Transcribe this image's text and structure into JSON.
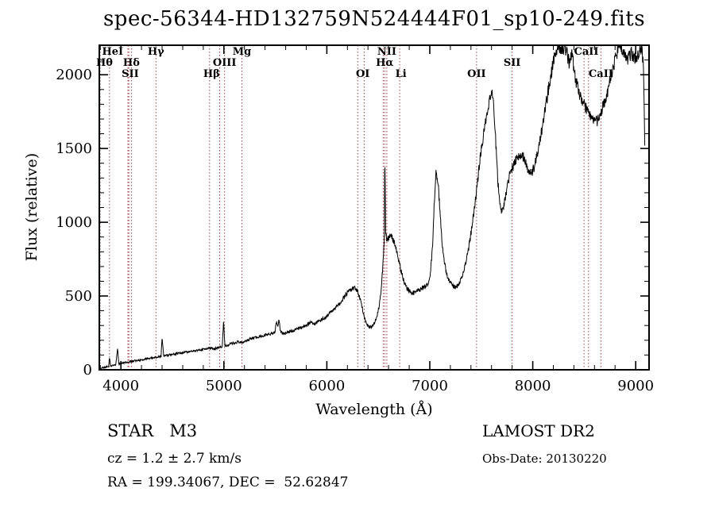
{
  "annotations": {
    "object": "STAR   M3",
    "cz": "cz = 1.2 ± 2.7 km/s",
    "ra_dec": "RA = 199.34067, DEC =  52.62847",
    "survey": "LAMOST DR2",
    "obs_date": "Obs-Date: 20130220"
  },
  "chart_data": {
    "type": "line",
    "title": "spec-56344-HD132759N524444F01_sp10-249.fits",
    "xlabel": "Wavelength (Å)",
    "ylabel": "Flux (relative)",
    "xlim": [
      3790,
      9130
    ],
    "ylim": [
      0,
      2200
    ],
    "x_ticks": [
      4000,
      5000,
      6000,
      7000,
      8000,
      9000
    ],
    "y_ticks": [
      0,
      500,
      1000,
      1500,
      2000
    ],
    "x_minor_step": 200,
    "y_minor_step": 100,
    "grid": false,
    "legend": "none",
    "line_color": "#000000",
    "marker_color": "#994444",
    "spectral_lines": [
      {
        "label": "HeI",
        "row": 1,
        "at": 3920,
        "lines": [
          3889
        ]
      },
      {
        "label": "Hθ",
        "row": 2,
        "at": 3840,
        "lines": [
          3798
        ]
      },
      {
        "label": "Hδ",
        "row": 2,
        "at": 4102,
        "lines": [
          4102
        ]
      },
      {
        "label": "SII",
        "row": 3,
        "at": 4090,
        "lines": [
          4068,
          4076
        ]
      },
      {
        "label": "Hγ",
        "row": 1,
        "at": 4340,
        "lines": [
          4340
        ]
      },
      {
        "label": "OIII",
        "row": 2,
        "at": 5007,
        "lines": [
          4959,
          5007
        ]
      },
      {
        "label": "Hβ",
        "row": 3,
        "at": 4880,
        "lines": [
          4861
        ]
      },
      {
        "label": "Mg",
        "row": 1,
        "at": 5175,
        "lines": [
          5175
        ]
      },
      {
        "label": "OI",
        "row": 3,
        "at": 6350,
        "lines": [
          6300,
          6363
        ]
      },
      {
        "label": "NII",
        "row": 1,
        "at": 6583,
        "lines": [
          6548,
          6583
        ]
      },
      {
        "label": "Hα",
        "row": 2,
        "at": 6563,
        "lines": [
          6563
        ]
      },
      {
        "label": "Li",
        "row": 3,
        "at": 6720,
        "lines": [
          6708
        ]
      },
      {
        "label": "OII",
        "row": 3,
        "at": 7455,
        "lines": [
          7455
        ]
      },
      {
        "label": "SII",
        "row": 2,
        "at": 7800,
        "lines": [
          7800
        ]
      },
      {
        "label": "CaII",
        "row": 1,
        "at": 8520,
        "lines": [
          8498,
          8542
        ]
      },
      {
        "label": "CaII",
        "row": 3,
        "at": 8662,
        "lines": [
          8662
        ]
      }
    ],
    "spectrum": [
      [
        3790,
        8
      ],
      [
        3815,
        12
      ],
      [
        3840,
        16
      ],
      [
        3862,
        20
      ],
      [
        3880,
        24
      ],
      [
        3889,
        85
      ],
      [
        3900,
        26
      ],
      [
        3925,
        30
      ],
      [
        3950,
        34
      ],
      [
        3968,
        150
      ],
      [
        3980,
        38
      ],
      [
        4000,
        42
      ],
      [
        4040,
        50
      ],
      [
        4080,
        55
      ],
      [
        4120,
        60
      ],
      [
        4160,
        64
      ],
      [
        4200,
        68
      ],
      [
        4240,
        73
      ],
      [
        4280,
        78
      ],
      [
        4320,
        83
      ],
      [
        4360,
        88
      ],
      [
        4390,
        92
      ],
      [
        4400,
        215
      ],
      [
        4415,
        94
      ],
      [
        4450,
        98
      ],
      [
        4500,
        104
      ],
      [
        4550,
        110
      ],
      [
        4600,
        116
      ],
      [
        4650,
        122
      ],
      [
        4700,
        127
      ],
      [
        4750,
        132
      ],
      [
        4800,
        138
      ],
      [
        4861,
        148
      ],
      [
        4905,
        142
      ],
      [
        4950,
        150
      ],
      [
        4985,
        158
      ],
      [
        4997,
        330
      ],
      [
        5010,
        162
      ],
      [
        5050,
        172
      ],
      [
        5100,
        183
      ],
      [
        5150,
        190
      ],
      [
        5185,
        185
      ],
      [
        5220,
        200
      ],
      [
        5260,
        210
      ],
      [
        5300,
        216
      ],
      [
        5350,
        226
      ],
      [
        5400,
        234
      ],
      [
        5450,
        243
      ],
      [
        5480,
        250
      ],
      [
        5497,
        252
      ],
      [
        5510,
        330
      ],
      [
        5522,
        285
      ],
      [
        5535,
        340
      ],
      [
        5550,
        262
      ],
      [
        5575,
        246
      ],
      [
        5620,
        254
      ],
      [
        5665,
        264
      ],
      [
        5710,
        274
      ],
      [
        5755,
        286
      ],
      [
        5800,
        302
      ],
      [
        5845,
        325
      ],
      [
        5880,
        308
      ],
      [
        5915,
        328
      ],
      [
        5955,
        342
      ],
      [
        6000,
        364
      ],
      [
        6045,
        396
      ],
      [
        6090,
        424
      ],
      [
        6135,
        455
      ],
      [
        6175,
        498
      ],
      [
        6210,
        535
      ],
      [
        6245,
        550
      ],
      [
        6275,
        556
      ],
      [
        6295,
        540
      ],
      [
        6320,
        492
      ],
      [
        6350,
        400
      ],
      [
        6375,
        330
      ],
      [
        6398,
        300
      ],
      [
        6418,
        288
      ],
      [
        6438,
        294
      ],
      [
        6462,
        315
      ],
      [
        6486,
        362
      ],
      [
        6508,
        432
      ],
      [
        6528,
        545
      ],
      [
        6544,
        705
      ],
      [
        6554,
        830
      ],
      [
        6559,
        900
      ],
      [
        6562,
        1380
      ],
      [
        6566,
        1400
      ],
      [
        6570,
        950
      ],
      [
        6582,
        880
      ],
      [
        6600,
        890
      ],
      [
        6617,
        906
      ],
      [
        6636,
        898
      ],
      [
        6656,
        858
      ],
      [
        6676,
        806
      ],
      [
        6696,
        748
      ],
      [
        6716,
        686
      ],
      [
        6736,
        630
      ],
      [
        6756,
        588
      ],
      [
        6776,
        558
      ],
      [
        6796,
        536
      ],
      [
        6816,
        521
      ],
      [
        6846,
        519
      ],
      [
        6876,
        531
      ],
      [
        6906,
        544
      ],
      [
        6936,
        556
      ],
      [
        6966,
        569
      ],
      [
        6988,
        588
      ],
      [
        7006,
        652
      ],
      [
        7026,
        825
      ],
      [
        7043,
        1120
      ],
      [
        7058,
        1330
      ],
      [
        7071,
        1308
      ],
      [
        7086,
        1215
      ],
      [
        7101,
        1055
      ],
      [
        7116,
        898
      ],
      [
        7133,
        768
      ],
      [
        7151,
        694
      ],
      [
        7169,
        643
      ],
      [
        7187,
        608
      ],
      [
        7206,
        584
      ],
      [
        7226,
        567
      ],
      [
        7249,
        559
      ],
      [
        7273,
        571
      ],
      [
        7299,
        606
      ],
      [
        7326,
        660
      ],
      [
        7356,
        744
      ],
      [
        7386,
        856
      ],
      [
        7416,
        1000
      ],
      [
        7446,
        1170
      ],
      [
        7476,
        1350
      ],
      [
        7506,
        1520
      ],
      [
        7536,
        1660
      ],
      [
        7563,
        1770
      ],
      [
        7586,
        1845
      ],
      [
        7606,
        1880
      ],
      [
        7623,
        1775
      ],
      [
        7643,
        1515
      ],
      [
        7661,
        1278
      ],
      [
        7679,
        1128
      ],
      [
        7696,
        1068
      ],
      [
        7713,
        1088
      ],
      [
        7731,
        1158
      ],
      [
        7753,
        1248
      ],
      [
        7776,
        1318
      ],
      [
        7801,
        1368
      ],
      [
        7831,
        1418
      ],
      [
        7861,
        1448
      ],
      [
        7891,
        1464
      ],
      [
        7916,
        1428
      ],
      [
        7941,
        1378
      ],
      [
        7966,
        1344
      ],
      [
        7991,
        1334
      ],
      [
        8016,
        1380
      ],
      [
        8041,
        1450
      ],
      [
        8071,
        1558
      ],
      [
        8101,
        1678
      ],
      [
        8131,
        1808
      ],
      [
        8161,
        1938
      ],
      [
        8191,
        2048
      ],
      [
        8216,
        2128
      ],
      [
        8241,
        2178
      ],
      [
        8266,
        2195
      ],
      [
        8291,
        2158
      ],
      [
        8311,
        2195
      ],
      [
        8331,
        2138
      ],
      [
        8356,
        2078
      ],
      [
        8381,
        2150
      ],
      [
        8406,
        2000
      ],
      [
        8431,
        1930
      ],
      [
        8456,
        1868
      ],
      [
        8481,
        1818
      ],
      [
        8511,
        1778
      ],
      [
        8541,
        1748
      ],
      [
        8571,
        1718
      ],
      [
        8601,
        1698
      ],
      [
        8626,
        1688
      ],
      [
        8651,
        1718
      ],
      [
        8676,
        1768
      ],
      [
        8701,
        1828
      ],
      [
        8731,
        1898
      ],
      [
        8761,
        1988
      ],
      [
        8791,
        2078
      ],
      [
        8816,
        2148
      ],
      [
        8841,
        2195
      ],
      [
        8861,
        2190
      ],
      [
        8881,
        2148
      ],
      [
        8906,
        2098
      ],
      [
        8931,
        2118
      ],
      [
        8956,
        2148
      ],
      [
        8981,
        2118
      ],
      [
        9006,
        2098
      ],
      [
        9031,
        2138
      ],
      [
        9056,
        2178
      ],
      [
        9076,
        2055
      ],
      [
        9088,
        1500
      ]
    ]
  }
}
